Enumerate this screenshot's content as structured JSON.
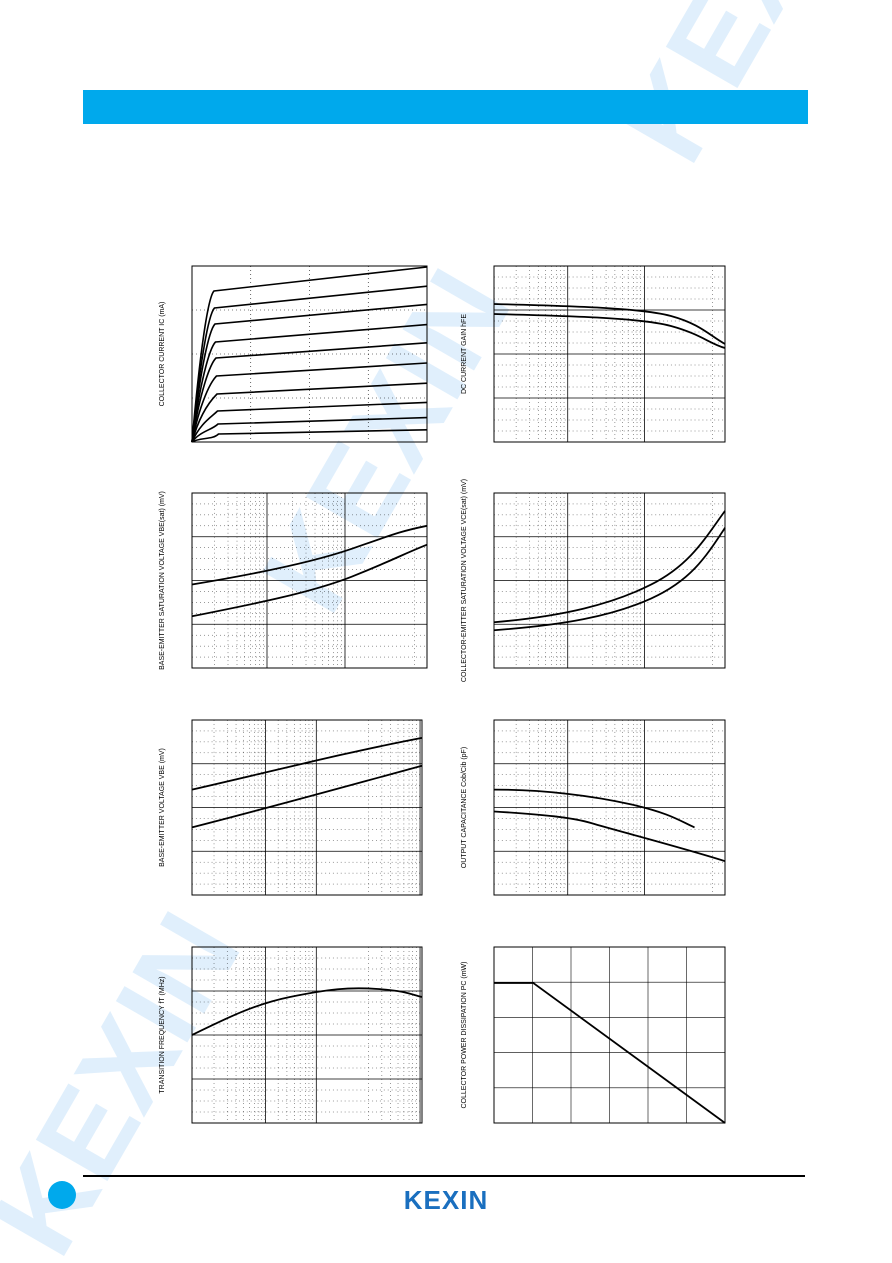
{
  "graphs": [
    {
      "y_label": "COLLECTOR CURRENT   IC  (mA)"
    },
    {
      "y_label": "DC CURRENT GAIN   hFE"
    },
    {
      "y_label": "BASE-EMITTER SATURATION VOLTAGE   VBE(sat)  (mV)"
    },
    {
      "y_label": "COLLECTOR-EMITTER SATURATION VOLTAGE   VCE(sat)  (mV)"
    },
    {
      "y_label": "BASE-EMITTER VOLTAGE   VBE  (mV)"
    },
    {
      "y_label": "OUTPUT CAPACITANCE   Cob/Cib  (pF)"
    },
    {
      "y_label": "TRANSITION FREQUENCY   fT  (MHz)"
    },
    {
      "y_label": "COLLECTOR POWER DISSIPATION   PC  (mW)"
    }
  ],
  "watermark": "KEXIN",
  "footer": {
    "logo": "KEXIN"
  }
}
